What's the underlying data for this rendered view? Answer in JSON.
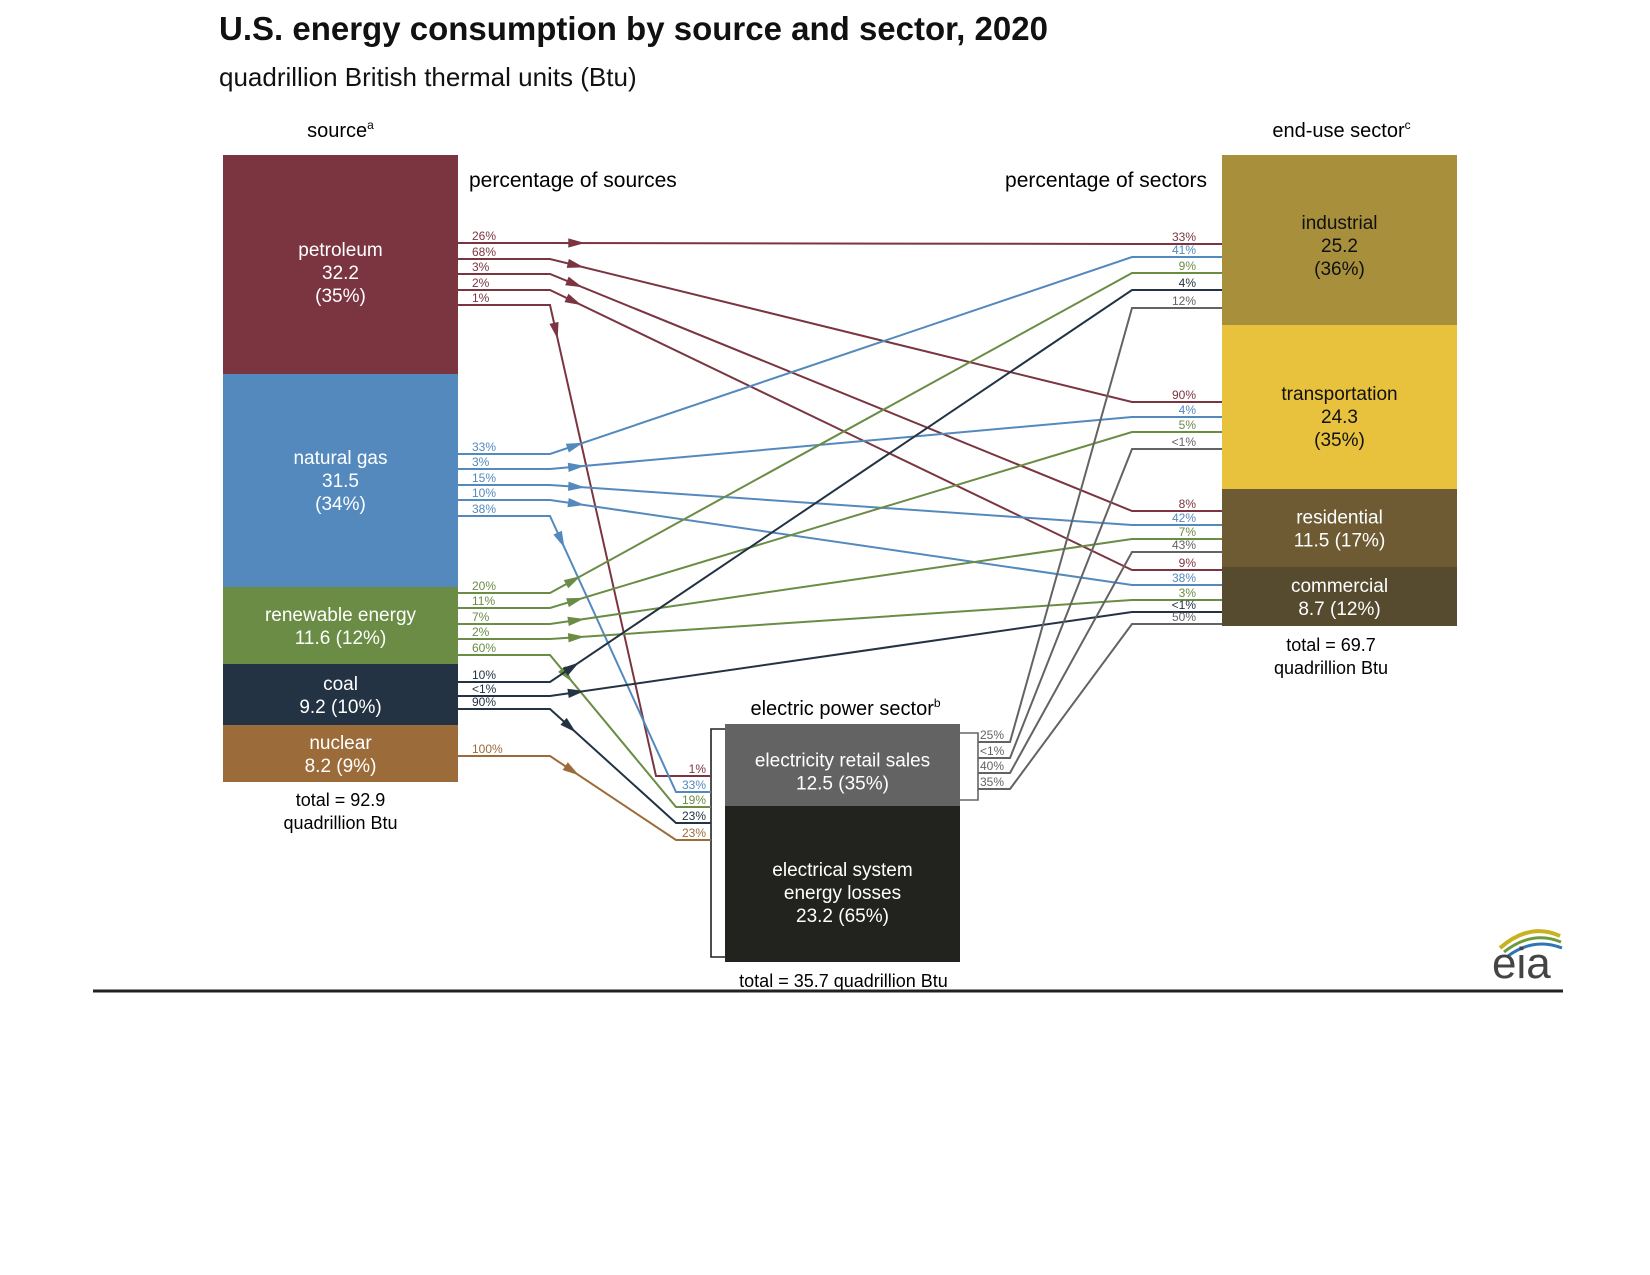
{
  "title": "U.S. energy consumption by source and sector, 2020",
  "subtitle": "quadrillion British thermal units (Btu)",
  "headers": {
    "source": "source",
    "source_sup": "a",
    "sector": "end-use sector",
    "sector_sup": "c",
    "pct_sources": "percentage of sources",
    "pct_sectors": "percentage of sectors",
    "electric": "electric power sector",
    "electric_sup": "b"
  },
  "sources": [
    {
      "id": "petroleum",
      "lines": [
        "petroleum",
        "32.2",
        "(35%)"
      ],
      "color": "#7b3540"
    },
    {
      "id": "natural-gas",
      "lines": [
        "natural gas",
        "31.5",
        "(34%)"
      ],
      "color": "#5489bd"
    },
    {
      "id": "renewable",
      "lines": [
        "renewable energy",
        "11.6 (12%)"
      ],
      "color": "#6a8c45"
    },
    {
      "id": "coal",
      "lines": [
        "coal",
        "9.2 (10%)"
      ],
      "color": "#243343"
    },
    {
      "id": "nuclear",
      "lines": [
        "nuclear",
        "8.2 (9%)"
      ],
      "color": "#9c6b3a"
    }
  ],
  "source_total": [
    "total = 92.9",
    "quadrillion Btu"
  ],
  "sectors": [
    {
      "id": "industrial",
      "lines": [
        "industrial",
        "25.2",
        "(36%)"
      ],
      "color": "#a78f3b",
      "text_color": "#111111"
    },
    {
      "id": "transportation",
      "lines": [
        "transportation",
        "24.3",
        "(35%)"
      ],
      "color": "#e8c13d",
      "text_color": "#111111"
    },
    {
      "id": "residential",
      "lines": [
        "residential",
        "11.5 (17%)"
      ],
      "color": "#6e5b33",
      "text_color": "#ffffff"
    },
    {
      "id": "commercial",
      "lines": [
        "commercial",
        "8.7 (12%)"
      ],
      "color": "#564a2f",
      "text_color": "#ffffff"
    }
  ],
  "sector_total": [
    "total = 69.7",
    "quadrillion Btu"
  ],
  "electric": {
    "retail": {
      "lines": [
        "electricity retail sales",
        "12.5 (35%)"
      ],
      "color": "#636363"
    },
    "losses": {
      "lines": [
        "electrical system",
        "energy losses",
        "23.2 (65%)"
      ],
      "color": "#22221e"
    },
    "total": "total = 35.7 quadrillion Btu"
  },
  "flows": [
    {
      "from": "petroleum",
      "to": "industrial",
      "src_pct": "26%",
      "dst_pct": "33%"
    },
    {
      "from": "petroleum",
      "to": "transportation",
      "src_pct": "68%",
      "dst_pct": "90%"
    },
    {
      "from": "petroleum",
      "to": "residential",
      "src_pct": "3%",
      "dst_pct": "8%"
    },
    {
      "from": "petroleum",
      "to": "commercial",
      "src_pct": "2%",
      "dst_pct": "9%"
    },
    {
      "from": "petroleum",
      "to": "electric",
      "src_pct": "1%",
      "dst_pct": "1%"
    },
    {
      "from": "natural-gas",
      "to": "industrial",
      "src_pct": "33%",
      "dst_pct": "41%"
    },
    {
      "from": "natural-gas",
      "to": "transportation",
      "src_pct": "3%",
      "dst_pct": "4%"
    },
    {
      "from": "natural-gas",
      "to": "residential",
      "src_pct": "15%",
      "dst_pct": "42%"
    },
    {
      "from": "natural-gas",
      "to": "commercial",
      "src_pct": "10%",
      "dst_pct": "38%"
    },
    {
      "from": "natural-gas",
      "to": "electric",
      "src_pct": "38%",
      "dst_pct": "33%"
    },
    {
      "from": "renewable",
      "to": "industrial",
      "src_pct": "20%",
      "dst_pct": "9%"
    },
    {
      "from": "renewable",
      "to": "transportation",
      "src_pct": "11%",
      "dst_pct": "5%"
    },
    {
      "from": "renewable",
      "to": "residential",
      "src_pct": "7%",
      "dst_pct": "7%"
    },
    {
      "from": "renewable",
      "to": "commercial",
      "src_pct": "2%",
      "dst_pct": "3%"
    },
    {
      "from": "renewable",
      "to": "electric",
      "src_pct": "60%",
      "dst_pct": "19%"
    },
    {
      "from": "coal",
      "to": "industrial",
      "src_pct": "10%",
      "dst_pct": "4%"
    },
    {
      "from": "coal",
      "to": "commercial",
      "src_pct": "<1%",
      "dst_pct": "<1%"
    },
    {
      "from": "coal",
      "to": "electric",
      "src_pct": "90%",
      "dst_pct": "23%"
    },
    {
      "from": "nuclear",
      "to": "electric",
      "src_pct": "100%",
      "dst_pct": "23%"
    },
    {
      "from": "electric",
      "to": "industrial",
      "src_pct": "25%",
      "dst_pct": "12%"
    },
    {
      "from": "electric",
      "to": "transportation",
      "src_pct": "<1%",
      "dst_pct": "<1%"
    },
    {
      "from": "electric",
      "to": "residential",
      "src_pct": "40%",
      "dst_pct": "43%"
    },
    {
      "from": "electric",
      "to": "commercial",
      "src_pct": "35%",
      "dst_pct": "50%"
    }
  ],
  "logo": {
    "text": "eia",
    "colors": [
      "#c9b21d",
      "#6c9a3c",
      "#2f74b5"
    ]
  }
}
